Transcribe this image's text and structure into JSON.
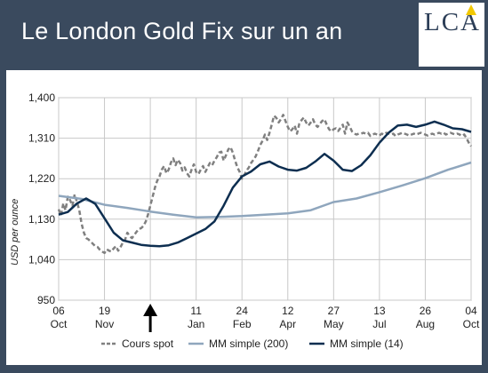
{
  "header": {
    "title": "Le London Gold Fix sur un an"
  },
  "logo": {
    "text": "LCA"
  },
  "chart_data": {
    "type": "line",
    "title": "Le London Gold Fix sur un an",
    "ylabel": "USD per ounce",
    "ylim": [
      950,
      1400
    ],
    "yticks": [
      "950",
      "1,040",
      "1,130",
      "1,220",
      "1,310",
      "1,400"
    ],
    "xticks": [
      {
        "day": "06",
        "month": "Oct"
      },
      {
        "day": "19",
        "month": "Nov"
      },
      {
        "day": "",
        "month": ""
      },
      {
        "day": "11",
        "month": "Jan"
      },
      {
        "day": "24",
        "month": "Feb"
      },
      {
        "day": "12",
        "month": "Apr"
      },
      {
        "day": "27",
        "month": "May"
      },
      {
        "day": "13",
        "month": "Jul"
      },
      {
        "day": "26",
        "month": "Aug"
      },
      {
        "day": "04",
        "month": "Oct"
      }
    ],
    "grid": true,
    "legend_position": "bottom",
    "annotation": "arrow",
    "series": [
      {
        "name": "Cours spot",
        "style": "dashed",
        "color": "#808080",
        "x": [
          0,
          0.05,
          0.1,
          0.15,
          0.2,
          0.25,
          0.3,
          0.35,
          0.4,
          0.45,
          0.5,
          0.55,
          0.6,
          0.65,
          0.7,
          0.75,
          0.8,
          0.85,
          0.9,
          0.95,
          1,
          1.05,
          1.1,
          1.15,
          1.2,
          1.25,
          1.3,
          1.35,
          1.4,
          1.45,
          1.5,
          1.55,
          1.6,
          1.65,
          1.7,
          1.75,
          1.8,
          1.85,
          1.9,
          1.95,
          2,
          2.05,
          2.1,
          2.15,
          2.2,
          2.25,
          2.3,
          2.35,
          2.4,
          2.45,
          2.5,
          2.55,
          2.6,
          2.65,
          2.7,
          2.75,
          2.8,
          2.85,
          2.9,
          2.95,
          3,
          3.05,
          3.1,
          3.15,
          3.2,
          3.25,
          3.3,
          3.35,
          3.4,
          3.45,
          3.5,
          3.55,
          3.6,
          3.65,
          3.7,
          3.75,
          3.8,
          3.85,
          3.9,
          3.95,
          4,
          4.05,
          4.1,
          4.15,
          4.2,
          4.25,
          4.3,
          4.35,
          4.4,
          4.45,
          4.5,
          4.55,
          4.6,
          4.65,
          4.7,
          4.75,
          4.8,
          4.85,
          4.9,
          4.95,
          5,
          5.05,
          5.1,
          5.15,
          5.2,
          5.25,
          5.3,
          5.35,
          5.4,
          5.45,
          5.5,
          5.55,
          5.6,
          5.65,
          5.7,
          5.75,
          5.8,
          5.85,
          5.9,
          5.95,
          6,
          6.05,
          6.1,
          6.15,
          6.2,
          6.25,
          6.3,
          6.35,
          6.4,
          6.45,
          6.5,
          6.55,
          6.6,
          6.65,
          6.7,
          6.75,
          6.8,
          6.85,
          6.9,
          6.95,
          7,
          7.05,
          7.1,
          7.15,
          7.2,
          7.25,
          7.3,
          7.35,
          7.4,
          7.45,
          7.5,
          7.55,
          7.6,
          7.65,
          7.7,
          7.75,
          7.8,
          7.85,
          7.9,
          7.95,
          8,
          8.05,
          8.1,
          8.15,
          8.2,
          8.25,
          8.3,
          8.35,
          8.4,
          8.45,
          8.5,
          8.55,
          8.6,
          8.65,
          8.7,
          8.75,
          8.8,
          8.85,
          8.9,
          8.95,
          9
        ],
        "values": [
          1152,
          1138,
          1165,
          1150,
          1180,
          1172,
          1160,
          1185,
          1168,
          1150,
          1120,
          1100,
          1088,
          1085,
          1080,
          1075,
          1070,
          1068,
          1062,
          1058,
          1055,
          1063,
          1060,
          1058,
          1065,
          1070,
          1060,
          1068,
          1078,
          1085,
          1100,
          1092,
          1088,
          1095,
          1102,
          1108,
          1110,
          1115,
          1125,
          1140,
          1160,
          1180,
          1200,
          1215,
          1225,
          1240,
          1248,
          1232,
          1240,
          1256,
          1265,
          1250,
          1262,
          1255,
          1238,
          1245,
          1232,
          1225,
          1240,
          1252,
          1235,
          1230,
          1240,
          1248,
          1235,
          1245,
          1255,
          1250,
          1260,
          1268,
          1278,
          1280,
          1260,
          1272,
          1285,
          1290,
          1278,
          1260,
          1245,
          1235,
          1220,
          1228,
          1238,
          1245,
          1255,
          1262,
          1270,
          1282,
          1295,
          1304,
          1318,
          1306,
          1322,
          1340,
          1360,
          1355,
          1345,
          1352,
          1362,
          1348,
          1335,
          1325,
          1330,
          1338,
          1320,
          1342,
          1350,
          1356,
          1345,
          1338,
          1345,
          1352,
          1340,
          1335,
          1342,
          1348,
          1352,
          1340,
          1330,
          1325,
          1330,
          1332,
          1326,
          1333,
          1340,
          1320,
          1345,
          1336,
          1325,
          1320,
          1318,
          1320,
          1320,
          1322,
          1320,
          1322,
          1315,
          1318,
          1320,
          1318,
          1316,
          1320,
          1318,
          1322,
          1320,
          1318,
          1320,
          1315,
          1318,
          1320,
          1322,
          1320,
          1318,
          1316,
          1318,
          1320,
          1318,
          1320,
          1322,
          1320,
          1318,
          1316,
          1318,
          1320,
          1318,
          1320,
          1322,
          1320,
          1322,
          1318,
          1320,
          1322,
          1320,
          1318,
          1320,
          1318,
          1315,
          1318,
          1310,
          1300,
          1292
        ]
      },
      {
        "name": "MM simple (200)",
        "style": "solid",
        "color": "#8fa6bd",
        "x": [
          0,
          0.5,
          1,
          1.5,
          2,
          2.5,
          3,
          3.5,
          4,
          4.5,
          5,
          5.5,
          6,
          6.5,
          7,
          7.5,
          8,
          8.5,
          9
        ],
        "values": [
          1182,
          1175,
          1162,
          1155,
          1147,
          1140,
          1134,
          1135,
          1137,
          1140,
          1143,
          1150,
          1168,
          1176,
          1190,
          1205,
          1221,
          1240,
          1256
        ]
      },
      {
        "name": "MM simple (14)",
        "style": "solid",
        "color": "#0d2e50",
        "x": [
          0,
          0.2,
          0.4,
          0.6,
          0.8,
          1,
          1.2,
          1.4,
          1.6,
          1.8,
          2,
          2.2,
          2.4,
          2.6,
          2.8,
          3,
          3.2,
          3.4,
          3.6,
          3.8,
          4,
          4.2,
          4.4,
          4.6,
          4.8,
          5,
          5.2,
          5.4,
          5.6,
          5.8,
          6,
          6.2,
          6.4,
          6.6,
          6.8,
          7,
          7.2,
          7.4,
          7.6,
          7.8,
          8,
          8.2,
          8.4,
          8.6,
          8.8,
          9
        ],
        "values": [
          1140,
          1146,
          1165,
          1176,
          1164,
          1132,
          1100,
          1083,
          1078,
          1073,
          1071,
          1070,
          1072,
          1078,
          1088,
          1098,
          1108,
          1125,
          1160,
          1200,
          1225,
          1236,
          1252,
          1258,
          1247,
          1240,
          1238,
          1244,
          1258,
          1275,
          1260,
          1240,
          1237,
          1250,
          1272,
          1300,
          1322,
          1338,
          1340,
          1335,
          1340,
          1347,
          1340,
          1332,
          1330,
          1324
        ]
      }
    ]
  }
}
